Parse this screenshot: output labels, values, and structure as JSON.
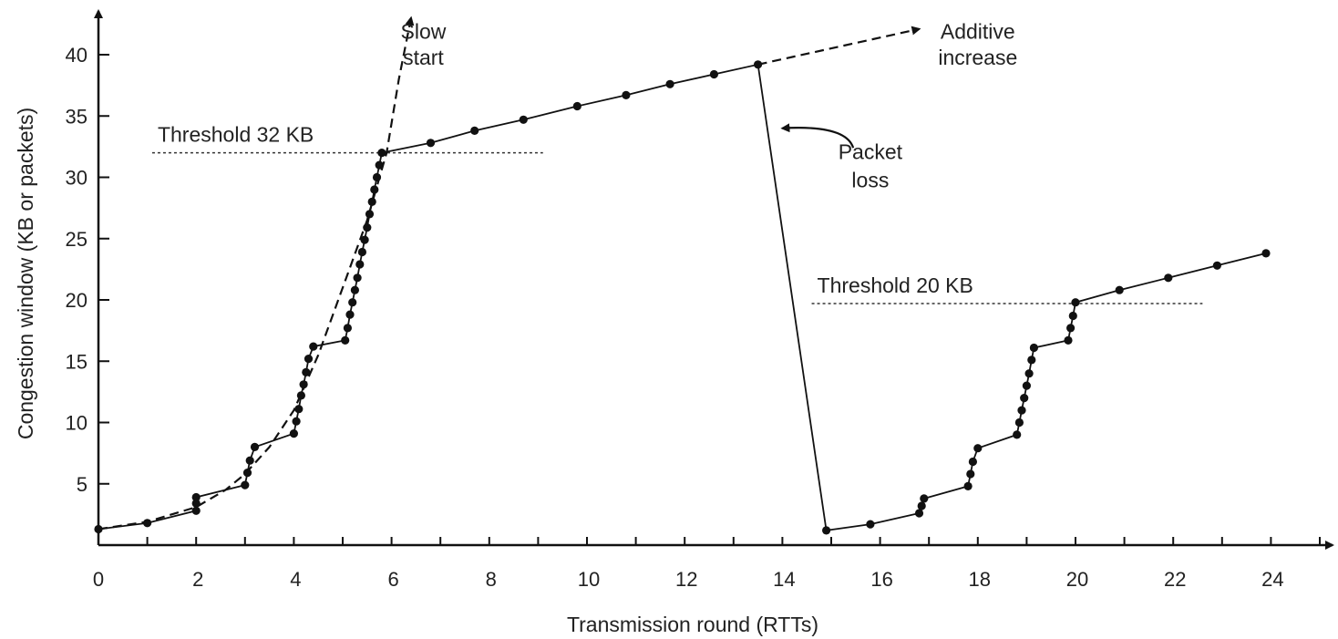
{
  "chart_data": {
    "type": "line",
    "title": "",
    "xlabel": "Transmission round (RTTs)",
    "ylabel": "Congestion window  (KB or packets)",
    "xlim": [
      0,
      25.5
    ],
    "ylim": [
      0,
      43
    ],
    "x_ticks": [
      0,
      2,
      4,
      6,
      8,
      10,
      12,
      14,
      16,
      18,
      20,
      22,
      24
    ],
    "y_ticks": [
      5,
      10,
      15,
      20,
      25,
      30,
      35,
      40
    ],
    "grid": false,
    "thresholds": [
      {
        "label": "Threshold 32 KB",
        "y": 32,
        "x_range": [
          1.1,
          9.1
        ]
      },
      {
        "label": "Threshold 20 KB",
        "y": 19.7,
        "x_range": [
          14.6,
          22.6
        ]
      }
    ],
    "series": [
      {
        "style": "solid",
        "points": [
          [
            0,
            1.3
          ],
          [
            1,
            1.8
          ],
          [
            2,
            2.8
          ],
          [
            2,
            3.4
          ],
          [
            2,
            3.9
          ],
          [
            3,
            4.9
          ],
          [
            3.05,
            5.9
          ],
          [
            3.1,
            6.9
          ],
          [
            3.2,
            8.0
          ],
          [
            4,
            9.1
          ],
          [
            4.05,
            10.1
          ],
          [
            4.1,
            11.1
          ],
          [
            4.15,
            12.2
          ],
          [
            4.2,
            13.1
          ],
          [
            4.25,
            14.1
          ],
          [
            4.3,
            15.2
          ],
          [
            4.4,
            16.2
          ],
          [
            5.05,
            16.7
          ],
          [
            5.1,
            17.7
          ],
          [
            5.15,
            18.8
          ],
          [
            5.2,
            19.8
          ],
          [
            5.25,
            20.8
          ],
          [
            5.3,
            21.8
          ],
          [
            5.35,
            22.9
          ],
          [
            5.4,
            23.9
          ],
          [
            5.45,
            24.9
          ],
          [
            5.5,
            25.9
          ],
          [
            5.55,
            27.0
          ],
          [
            5.6,
            28.0
          ],
          [
            5.65,
            29.0
          ],
          [
            5.7,
            30.0
          ],
          [
            5.75,
            31.0
          ],
          [
            5.8,
            32.0
          ],
          [
            6.8,
            32.8
          ],
          [
            7.7,
            33.8
          ],
          [
            8.7,
            34.7
          ],
          [
            9.8,
            35.8
          ],
          [
            10.8,
            36.7
          ],
          [
            11.7,
            37.6
          ],
          [
            12.6,
            38.4
          ],
          [
            13.5,
            39.2
          ],
          [
            14.9,
            1.2
          ],
          [
            15.8,
            1.7
          ],
          [
            16.8,
            2.6
          ],
          [
            16.85,
            3.2
          ],
          [
            16.9,
            3.8
          ],
          [
            17.8,
            4.8
          ],
          [
            17.85,
            5.8
          ],
          [
            17.9,
            6.8
          ],
          [
            18,
            7.9
          ],
          [
            18.8,
            9.0
          ],
          [
            18.85,
            10.0
          ],
          [
            18.9,
            11.0
          ],
          [
            18.95,
            12.0
          ],
          [
            19,
            13.0
          ],
          [
            19.05,
            14.0
          ],
          [
            19.1,
            15.1
          ],
          [
            19.15,
            16.1
          ],
          [
            19.85,
            16.7
          ],
          [
            19.9,
            17.7
          ],
          [
            19.95,
            18.7
          ],
          [
            20,
            19.8
          ],
          [
            20.9,
            20.8
          ],
          [
            21.9,
            21.8
          ],
          [
            22.9,
            22.8
          ],
          [
            23.9,
            23.8
          ]
        ]
      },
      {
        "style": "dashed",
        "points": [
          [
            0,
            1.3
          ],
          [
            1,
            1.9
          ],
          [
            2,
            3.1
          ],
          [
            2.6,
            4.5
          ],
          [
            3,
            5.8
          ],
          [
            3.5,
            8.0
          ],
          [
            4,
            11
          ],
          [
            4.5,
            15.5
          ],
          [
            5,
            21
          ],
          [
            5.5,
            26.5
          ],
          [
            5.9,
            32
          ],
          [
            6.15,
            38
          ],
          [
            6.4,
            43
          ]
        ]
      },
      {
        "style": "dashed",
        "points": [
          [
            13.5,
            39.2
          ],
          [
            16.8,
            42.1
          ]
        ]
      }
    ],
    "annotations": [
      {
        "text": "Slow",
        "x": 6.65,
        "y": 41.3
      },
      {
        "text": "start",
        "x": 6.65,
        "y": 39.2
      },
      {
        "text": "Additive",
        "x": 18.0,
        "y": 41.3
      },
      {
        "text": "increase",
        "x": 18.0,
        "y": 39.2
      },
      {
        "text": "Packet",
        "x": 15.8,
        "y": 31.5
      },
      {
        "text": "loss",
        "x": 15.8,
        "y": 29.2
      }
    ],
    "packet_loss_arrow": {
      "from": [
        15.45,
        32.4
      ],
      "to": [
        14.0,
        34.0
      ]
    }
  }
}
